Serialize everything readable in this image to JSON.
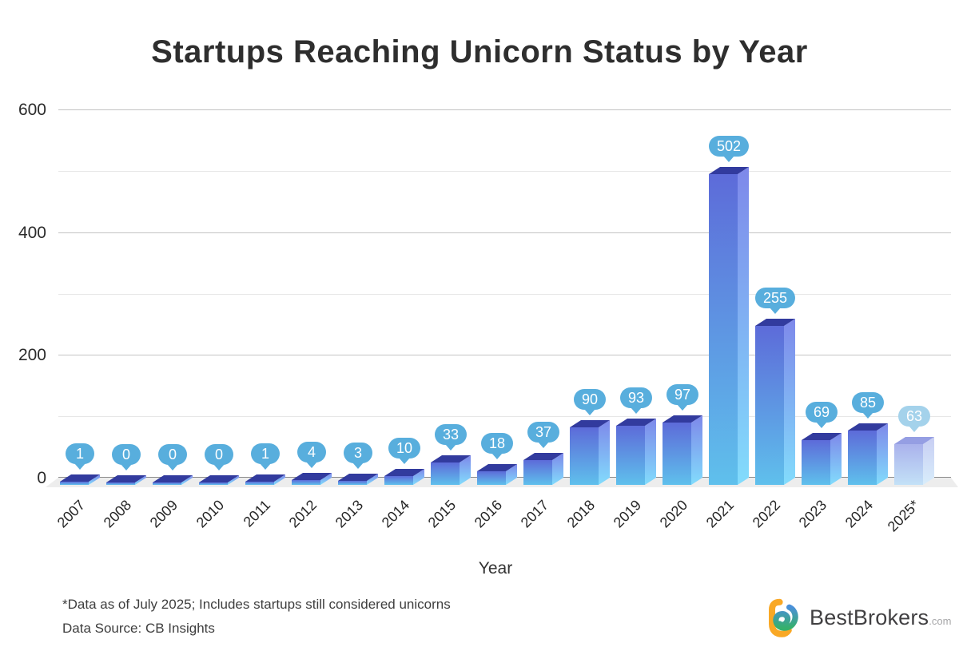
{
  "title": "Startups Reaching Unicorn Status by Year",
  "chart_data": {
    "type": "bar",
    "title": "Startups Reaching Unicorn Status by Year",
    "categories": [
      "2007",
      "2008",
      "2009",
      "2010",
      "2011",
      "2012",
      "2013",
      "2014",
      "2015",
      "2016",
      "2017",
      "2018",
      "2019",
      "2020",
      "2021",
      "2022",
      "2023",
      "2024",
      "2025*"
    ],
    "values": [
      1,
      0,
      0,
      0,
      1,
      4,
      3,
      10,
      33,
      18,
      37,
      90,
      93,
      97,
      502,
      255,
      69,
      85,
      63
    ],
    "xlabel": "Year",
    "ylabel": "",
    "ylim": [
      0,
      600
    ],
    "yticks": [
      0,
      200,
      400,
      600
    ],
    "minor_gridlines": [
      100,
      300,
      500
    ],
    "major_gridlines": [
      200,
      400,
      600
    ],
    "style": "3d-gradient-bars",
    "data_labels": "callout-bubbles-above-bars",
    "faded_categories": [
      "2025*"
    ],
    "legend": "none"
  },
  "colors": {
    "bar_top": "#323b9e",
    "bar_front_top": "#5d6bd9",
    "bar_front_bottom": "#5fc0ec",
    "bar_side_top": "#7e88ea",
    "bar_side_bottom": "#82dcfc",
    "bar_top_faded": "#959ee3",
    "bar_front_top_faded": "#aab2ec",
    "bar_front_bottom_faded": "#c3e1f7",
    "bar_side_top_faded": "#c8cef3",
    "bar_side_bottom_faded": "#d8edfb",
    "callout": "#58aedd",
    "callout_faded": "#a4d2eb",
    "floor": "#ededed",
    "gridline_major": "#c3c3c3",
    "gridline_minor": "#e7e7e7",
    "axis_line": "#8a8a8a",
    "logo_orange": "#f9a825",
    "logo_blue": "#4a90d9",
    "logo_green": "#35b06a"
  },
  "footnotes": {
    "line1": "*Data as of July 2025; Includes startups still considered unicorns",
    "line2": "Data Source: CB Insights"
  },
  "branding": {
    "name": "BestBrokers",
    "tld": ".com"
  }
}
